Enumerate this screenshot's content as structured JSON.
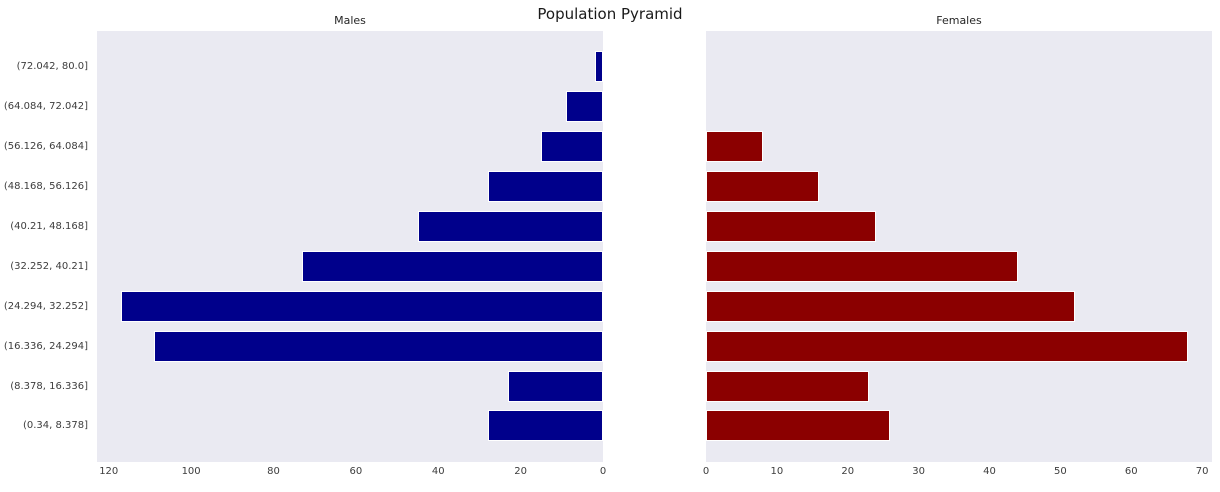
{
  "title": "Population Pyramid",
  "chart_data": {
    "type": "bar",
    "orientation": "horizontal",
    "title": "Population Pyramid",
    "grid": false,
    "legend": false,
    "plot_background": "#EAEAF2",
    "categories": [
      "(72.042, 80.0]",
      "(64.084, 72.042]",
      "(56.126, 64.084]",
      "(48.168, 56.126]",
      "(40.21, 48.168]",
      "(32.252, 40.21]",
      "(24.294, 32.252]",
      "(16.336, 24.294]",
      "(8.378, 16.336]",
      "(0.34, 8.378]"
    ],
    "series": [
      {
        "name": "Males",
        "color": "#00008B",
        "values": [
          2,
          9,
          15,
          28,
          45,
          73,
          117,
          109,
          23,
          28
        ],
        "axis_ticks": [
          120,
          100,
          80,
          60,
          40,
          20,
          0
        ],
        "xmax": 122.85,
        "axis_reversed": true
      },
      {
        "name": "Females",
        "color": "#8B0000",
        "values": [
          0,
          0,
          8,
          16,
          24,
          44,
          52,
          68,
          23,
          26
        ],
        "axis_ticks": [
          0,
          10,
          20,
          30,
          40,
          50,
          60,
          70
        ],
        "xmax": 71.4,
        "axis_reversed": false
      }
    ]
  }
}
